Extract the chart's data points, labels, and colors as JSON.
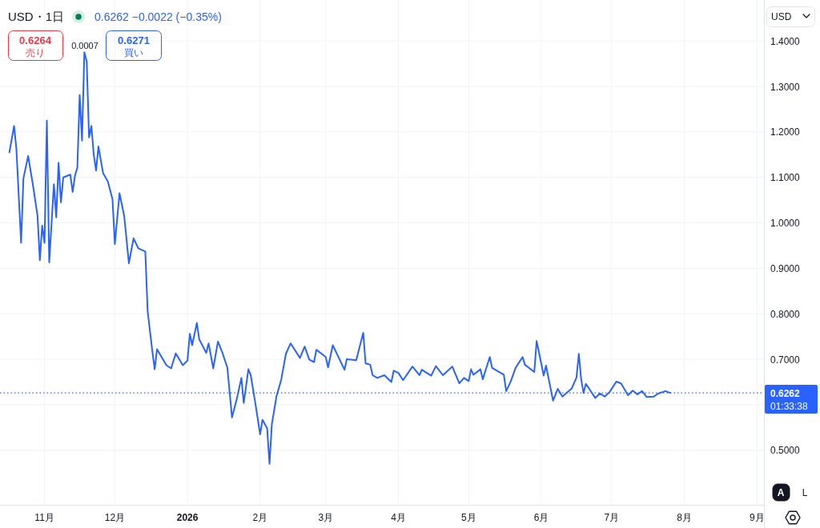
{
  "chart_data": {
    "type": "line",
    "title": "USD・1日",
    "subtitle": "0.6262 −0.0022 (−0.35%)",
    "x": [
      "2025-10-17",
      "2025-10-19",
      "2025-10-20",
      "2025-10-22",
      "2025-10-23",
      "2025-10-25",
      "2025-10-27",
      "2025-10-29",
      "2025-10-30",
      "2025-10-31",
      "2025-11-01",
      "2025-11-02",
      "2025-11-03",
      "2025-11-05",
      "2025-11-06",
      "2025-11-07",
      "2025-11-08",
      "2025-11-09",
      "2025-11-12",
      "2025-11-13",
      "2025-11-14",
      "2025-11-15",
      "2025-11-16",
      "2025-11-17",
      "2025-11-18",
      "2025-11-19",
      "2025-11-20",
      "2025-11-21",
      "2025-11-22",
      "2025-11-23",
      "2025-11-24",
      "2025-11-26",
      "2025-11-28",
      "2025-11-30",
      "2025-12-01",
      "2025-12-03",
      "2025-12-05",
      "2025-12-07",
      "2025-12-09",
      "2025-12-11",
      "2025-12-14",
      "2025-12-15",
      "2025-12-17",
      "2025-12-18",
      "2025-12-19",
      "2025-12-23",
      "2025-12-25",
      "2025-12-27",
      "2025-12-30",
      "2026-01-01",
      "2026-01-02",
      "2026-01-03",
      "2026-01-05",
      "2026-01-06",
      "2026-01-09",
      "2026-01-10",
      "2026-01-12",
      "2026-01-14",
      "2026-01-16",
      "2026-01-18",
      "2026-01-20",
      "2026-01-22",
      "2026-01-24",
      "2026-01-25",
      "2026-01-27",
      "2026-01-28",
      "2026-01-30",
      "2026-02-01",
      "2026-02-02",
      "2026-02-04",
      "2026-02-05",
      "2026-02-06",
      "2026-02-08",
      "2026-02-10",
      "2026-02-12",
      "2026-02-14",
      "2026-02-18",
      "2026-02-20",
      "2026-02-22",
      "2026-02-24",
      "2026-02-25",
      "2026-03-01",
      "2026-03-02",
      "2026-03-04",
      "2026-03-09",
      "2026-03-10",
      "2026-03-14",
      "2026-03-17",
      "2026-03-18",
      "2026-03-20",
      "2026-03-21",
      "2026-03-23",
      "2026-03-26",
      "2026-03-29",
      "2026-03-30",
      "2026-04-01",
      "2026-04-03",
      "2026-04-07",
      "2026-04-10",
      "2026-04-11",
      "2026-04-15",
      "2026-04-17",
      "2026-04-20",
      "2026-04-24",
      "2026-04-27",
      "2026-04-29",
      "2026-05-01",
      "2026-05-02",
      "2026-05-03",
      "2026-05-06",
      "2026-05-07",
      "2026-05-10",
      "2026-05-11",
      "2026-05-16",
      "2026-05-17",
      "2026-05-19",
      "2026-05-21",
      "2026-05-24",
      "2026-05-25",
      "2026-05-29",
      "2026-05-30",
      "2026-05-31",
      "2026-06-02",
      "2026-06-03",
      "2026-06-06",
      "2026-06-08",
      "2026-06-10",
      "2026-06-14",
      "2026-06-16",
      "2026-06-17",
      "2026-06-18",
      "2026-06-19",
      "2026-06-20",
      "2026-06-24",
      "2026-06-26",
      "2026-06-28",
      "2026-06-30",
      "2026-07-03",
      "2026-07-05",
      "2026-07-08",
      "2026-07-10",
      "2026-07-12",
      "2026-07-14",
      "2026-07-16",
      "2026-07-19",
      "2026-07-21",
      "2026-07-24",
      "2026-07-26"
    ],
    "series": [
      {
        "color": "#2962ff",
        "values": [
          1.155,
          1.213,
          1.162,
          0.956,
          1.098,
          1.147,
          1.085,
          1.016,
          0.918,
          0.994,
          0.956,
          1.225,
          0.913,
          1.085,
          1.012,
          1.132,
          1.045,
          1.1,
          1.106,
          1.068,
          1.104,
          1.121,
          1.281,
          1.181,
          1.375,
          1.355,
          1.188,
          1.213,
          1.15,
          1.115,
          1.168,
          1.109,
          1.091,
          1.052,
          0.953,
          1.065,
          1.015,
          0.911,
          0.966,
          0.944,
          0.937,
          0.806,
          0.718,
          0.678,
          0.722,
          0.687,
          0.68,
          0.713,
          0.687,
          0.697,
          0.756,
          0.731,
          0.78,
          0.744,
          0.714,
          0.735,
          0.68,
          0.739,
          0.713,
          0.682,
          0.572,
          0.612,
          0.659,
          0.604,
          0.678,
          0.665,
          0.602,
          0.535,
          0.567,
          0.548,
          0.47,
          0.557,
          0.619,
          0.655,
          0.712,
          0.735,
          0.703,
          0.728,
          0.699,
          0.694,
          0.721,
          0.705,
          0.682,
          0.731,
          0.677,
          0.7,
          0.698,
          0.758,
          0.691,
          0.688,
          0.665,
          0.659,
          0.665,
          0.65,
          0.675,
          0.67,
          0.654,
          0.684,
          0.665,
          0.677,
          0.664,
          0.685,
          0.665,
          0.684,
          0.647,
          0.659,
          0.652,
          0.678,
          0.666,
          0.678,
          0.656,
          0.705,
          0.681,
          0.666,
          0.63,
          0.652,
          0.681,
          0.705,
          0.688,
          0.672,
          0.74,
          0.715,
          0.664,
          0.686,
          0.609,
          0.635,
          0.618,
          0.636,
          0.66,
          0.712,
          0.656,
          0.626,
          0.646,
          0.615,
          0.625,
          0.618,
          0.627,
          0.651,
          0.647,
          0.621,
          0.631,
          0.623,
          0.63,
          0.617,
          0.618,
          0.625,
          0.63,
          0.626
        ]
      }
    ],
    "xlim": [
      "2025-10-13",
      "2026-09-04"
    ],
    "xticks": [
      {
        "value": "2025-11-01",
        "label": "11月"
      },
      {
        "value": "2025-12-01",
        "label": "12月"
      },
      {
        "value": "2026-01-01",
        "label": "2026"
      },
      {
        "value": "2026-02-01",
        "label": "2月"
      },
      {
        "value": "2026-03-01",
        "label": "3月"
      },
      {
        "value": "2026-04-01",
        "label": "4月"
      },
      {
        "value": "2026-05-01",
        "label": "5月"
      },
      {
        "value": "2026-06-01",
        "label": "6月"
      },
      {
        "value": "2026-07-01",
        "label": "7月"
      },
      {
        "value": "2026-08-01",
        "label": "8月"
      },
      {
        "value": "2026-09-01",
        "label": "9月"
      }
    ],
    "ylim": [
      0.38,
      1.49
    ],
    "yticks": [
      {
        "value": 0.5,
        "label": "0.5000"
      },
      {
        "value": 0.6,
        "label": null
      },
      {
        "value": 0.7,
        "label": "0.7000"
      },
      {
        "value": 0.8,
        "label": "0.8000"
      },
      {
        "value": 0.9,
        "label": "0.9000"
      },
      {
        "value": 1.0,
        "label": "1.0000"
      },
      {
        "value": 1.1,
        "label": "1.1000"
      },
      {
        "value": 1.2,
        "label": "1.2000"
      },
      {
        "value": 1.3,
        "label": "1.3000"
      },
      {
        "value": 1.4,
        "label": "1.4000"
      }
    ],
    "grid": true,
    "ref_lines": [
      {
        "axis": "y",
        "value": 0.6262,
        "label": "0.6262",
        "color": "#2962ff",
        "line_style": "dotted"
      }
    ],
    "annotations": [
      "0.6264",
      "売り",
      "0.0007",
      "0.6271",
      "買い",
      "01:33:38",
      "USD",
      "A",
      "L"
    ]
  }
}
